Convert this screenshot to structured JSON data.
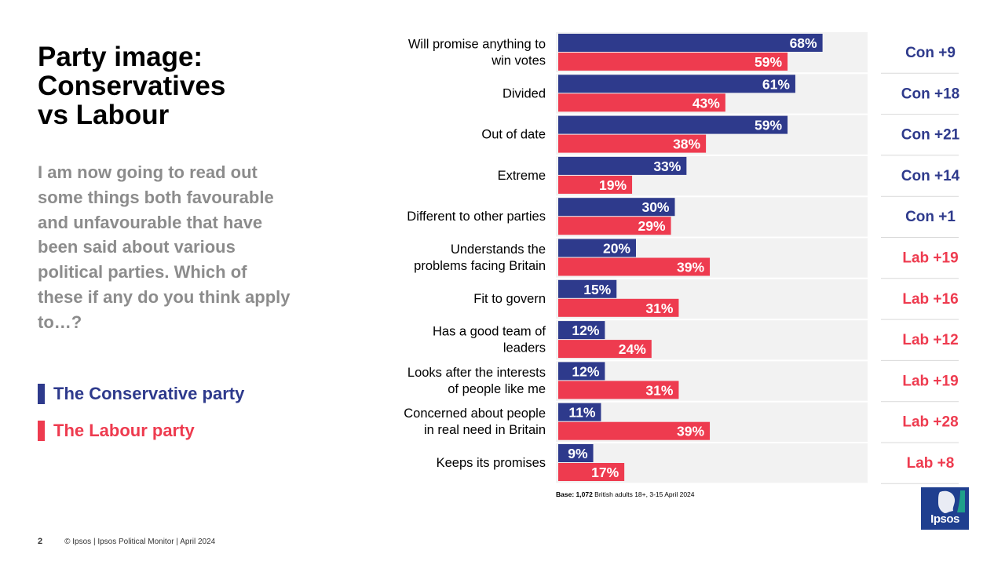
{
  "title": "Party image:\nConservatives\nvs Labour",
  "question": "I am now going to read out some things both favourable and unfavourable that have been said about various political parties. Which of these if any do you think apply to…?",
  "colors": {
    "conservative": "#2e3a8c",
    "labour": "#ee3b4f",
    "plot_bg": "#f2f2f2",
    "question": "#8c8c8c"
  },
  "legend": [
    {
      "label": "The Conservative party",
      "color": "#2e3a8c"
    },
    {
      "label": "The Labour party",
      "color": "#ee3b4f"
    }
  ],
  "chart_data": {
    "type": "bar",
    "orientation": "horizontal",
    "categories": [
      "Will promise anything to win votes",
      "Divided",
      "Out of date",
      "Extreme",
      "Different to other parties",
      "Understands the problems facing Britain",
      "Fit to govern",
      "Has a good team of leaders",
      "Looks after the interests of people like me",
      "Concerned about people in real need in Britain",
      "Keeps its promises"
    ],
    "category_lines": [
      [
        "Will promise anything to",
        "win votes"
      ],
      [
        "Divided"
      ],
      [
        "Out of date"
      ],
      [
        "Extreme"
      ],
      [
        "Different to other parties"
      ],
      [
        "Understands the",
        "problems facing Britain"
      ],
      [
        "Fit to govern"
      ],
      [
        "Has a good team of",
        "leaders"
      ],
      [
        "Looks after the interests",
        "of people like me"
      ],
      [
        "Concerned about people",
        "in real need in Britain"
      ],
      [
        "Keeps its promises"
      ]
    ],
    "series": [
      {
        "name": "The Conservative party",
        "values": [
          68,
          61,
          59,
          33,
          30,
          20,
          15,
          12,
          12,
          11,
          9
        ]
      },
      {
        "name": "The Labour party",
        "values": [
          59,
          43,
          38,
          19,
          29,
          39,
          31,
          24,
          31,
          39,
          17
        ]
      }
    ],
    "value_labels": {
      "conservative": [
        "68%",
        "61%",
        "59%",
        "33%",
        "30%",
        "20%",
        "15%",
        "12%",
        "12%",
        "11%",
        "9%"
      ],
      "labour": [
        "59%",
        "43%",
        "38%",
        "19%",
        "29%",
        "39%",
        "31%",
        "24%",
        "31%",
        "39%",
        "17%"
      ]
    },
    "differences": [
      {
        "label": "Con +9",
        "party": "conservative"
      },
      {
        "label": "Con +18",
        "party": "conservative"
      },
      {
        "label": "Con +21",
        "party": "conservative"
      },
      {
        "label": "Con +14",
        "party": "conservative"
      },
      {
        "label": "Con +1",
        "party": "conservative"
      },
      {
        "label": "Lab +19",
        "party": "labour"
      },
      {
        "label": "Lab +16",
        "party": "labour"
      },
      {
        "label": "Lab +12",
        "party": "labour"
      },
      {
        "label": "Lab +19",
        "party": "labour"
      },
      {
        "label": "Lab +28",
        "party": "labour"
      },
      {
        "label": "Lab +8",
        "party": "labour"
      }
    ],
    "xlim": [
      0,
      80
    ],
    "unit": "%"
  },
  "base_note": {
    "prefix": "Base:",
    "number": "1,072",
    "rest": " British adults 18+, 3-15 April 2024"
  },
  "footer": {
    "page": "2",
    "text": "© Ipsos | Ipsos Political Monitor | April 2024"
  },
  "logo": {
    "text": "Ipsos"
  }
}
